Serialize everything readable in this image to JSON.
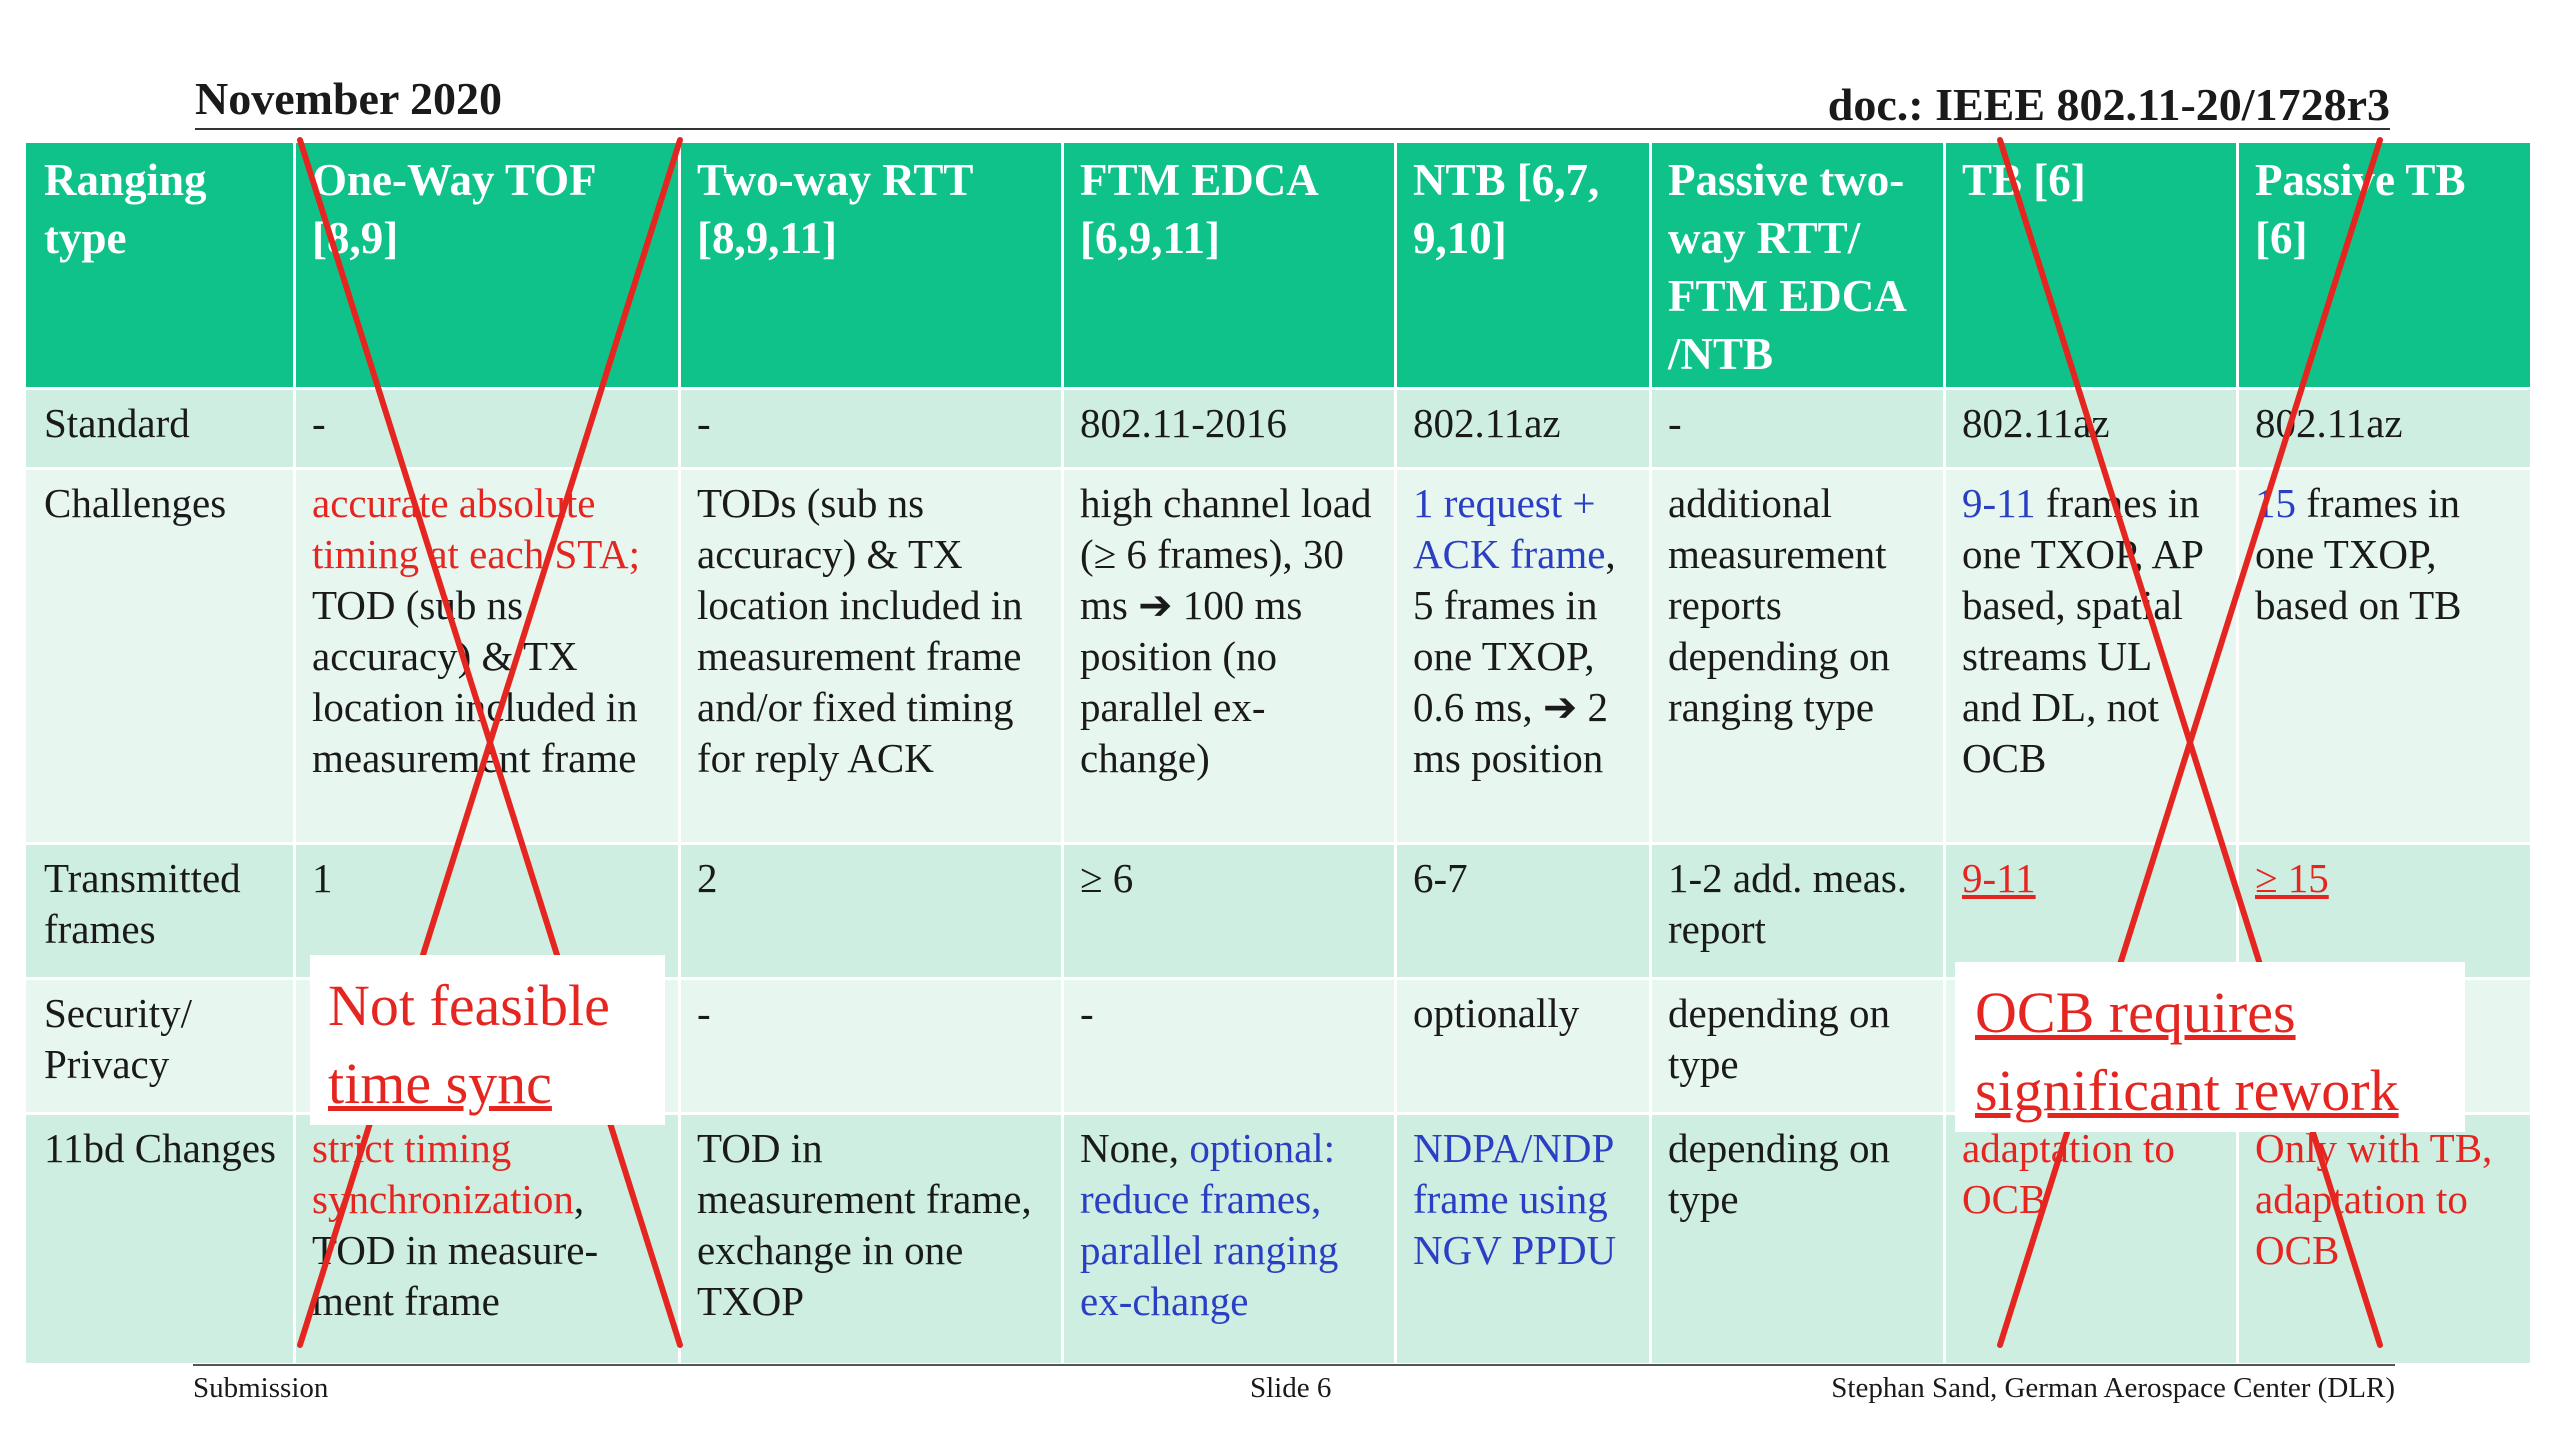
{
  "header": {
    "date": "November 2020",
    "doc": "doc.: IEEE 802.11-20/1728r3"
  },
  "footer": {
    "left": "Submission",
    "center": "Slide 6",
    "right": "Stephan Sand, German Aerospace Center (DLR)"
  },
  "table": {
    "headers": [
      "Ranging type",
      "One-Way TOF [8,9]",
      "Two-way RTT [8,9,11]",
      "FTM EDCA [6,9,11]",
      "NTB [6,7, 9,10]",
      "Passive two-way RTT/ FTM EDCA /NTB",
      "TB [6]",
      "Passive TB [6]"
    ],
    "rows": {
      "standard": {
        "label": "Standard",
        "cells": [
          "-",
          "-",
          "802.11-2016",
          "802.11az",
          "-",
          "802.11az",
          "802.11az"
        ]
      },
      "challenges": {
        "label": "Challenges",
        "c1_red": "accurate absolute timing at each STA;",
        "c1_rest": "TOD (sub ns accuracy) & TX location included in measurement frame",
        "c2": "TODs (sub ns accuracy) & TX location included in measurement frame and/or fixed timing for reply ACK",
        "c3": "high channel load (≥ 6 frames), 30 ms ➔ 100 ms position (no parallel ex-change)",
        "c4_blue": "1 request + ACK frame",
        "c4_rest": ", 5 frames in one TXOP, 0.6 ms, ➔ 2 ms position",
        "c5": "additional measurement reports depending on ranging type",
        "c6_blue": "9-11",
        "c6_rest": " frames in one TXOP, AP based, spatial streams UL and DL, not OCB",
        "c7_blue": "15",
        "c7_rest": " frames in one TXOP, based on TB"
      },
      "frames": {
        "label": "Transmitted frames",
        "cells": [
          "1",
          "2",
          "≥ 6",
          "6-7",
          "1-2  add. meas. report",
          "9-11",
          "≥ 15"
        ]
      },
      "security": {
        "label": "Security/ Privacy",
        "cells": [
          "",
          "-",
          "-",
          "optionally",
          "depending on type",
          "",
          ""
        ]
      },
      "changes": {
        "label": "11bd Changes",
        "c1_red": "strict timing synchronization",
        "c1_rest": ", TOD in measure-ment frame",
        "c2": "TOD in measurement frame, exchange in one TXOP",
        "c3_plain": "None, ",
        "c3_blue": "optional: reduce frames, parallel ranging ex-change",
        "c4_blue": "NDPA/NDP frame using NGV PPDU",
        "c5": "depending on type",
        "c6_red": "adaptation to OCB",
        "c7_red": "Only with TB, adaptation to OCB"
      }
    }
  },
  "callouts": {
    "left": [
      "Not feasible",
      "time sync"
    ],
    "right": [
      "OCB requires",
      "significant rework"
    ]
  },
  "colors": {
    "header_bg": "#0ec28a",
    "row_dark": "#cfeee2",
    "row_light": "#e8f6f0",
    "red": "#e52620",
    "blue": "#2a3fc4"
  }
}
